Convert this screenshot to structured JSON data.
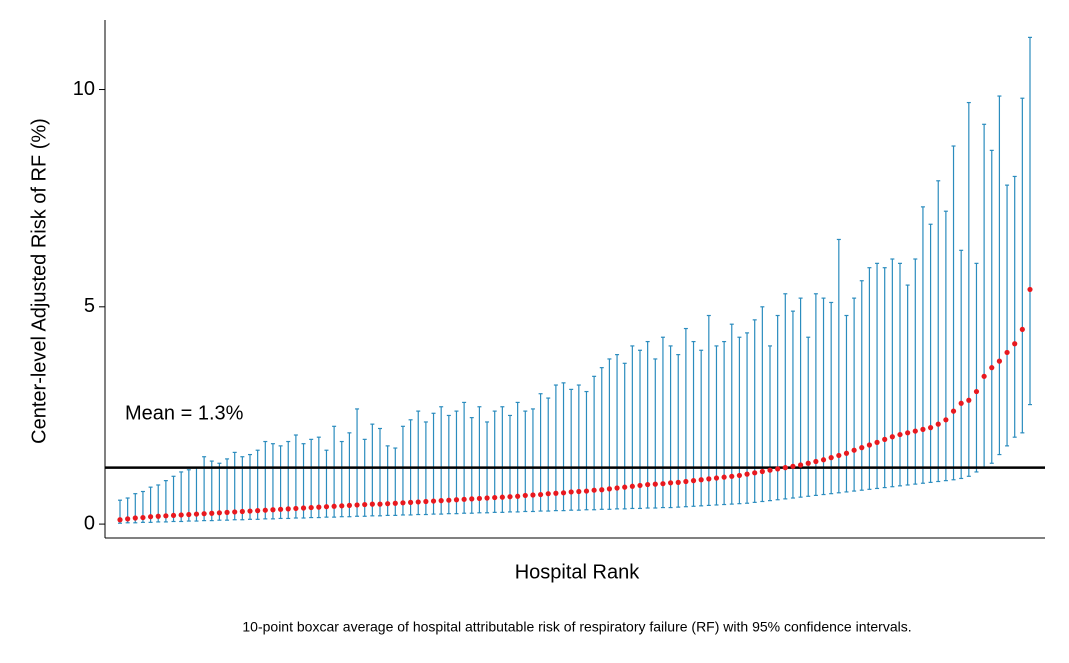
{
  "chart_data": {
    "type": "errorbar",
    "xlabel": "Hospital Rank",
    "ylabel": "Center-level Adjusted Risk of RF (%)",
    "caption": "10-point boxcar average of hospital attributable risk of respiratory failure (RF) with 95% confidence intervals.",
    "ylim": [
      -0.32,
      11.6
    ],
    "yticks": [
      0,
      5,
      10
    ],
    "mean": 1.3,
    "mean_label": "Mean = 1.3%",
    "point_color": "#e8191f",
    "bar_color": "#2b8cbe",
    "values": [
      0.1,
      0.12,
      0.14,
      0.15,
      0.17,
      0.18,
      0.19,
      0.2,
      0.21,
      0.22,
      0.23,
      0.24,
      0.25,
      0.26,
      0.27,
      0.28,
      0.29,
      0.3,
      0.31,
      0.32,
      0.33,
      0.34,
      0.35,
      0.36,
      0.37,
      0.38,
      0.39,
      0.4,
      0.41,
      0.42,
      0.43,
      0.44,
      0.45,
      0.46,
      0.46,
      0.47,
      0.48,
      0.49,
      0.5,
      0.51,
      0.52,
      0.53,
      0.54,
      0.55,
      0.56,
      0.57,
      0.58,
      0.59,
      0.6,
      0.61,
      0.62,
      0.63,
      0.64,
      0.66,
      0.67,
      0.68,
      0.7,
      0.71,
      0.72,
      0.74,
      0.75,
      0.76,
      0.78,
      0.79,
      0.81,
      0.83,
      0.85,
      0.87,
      0.89,
      0.91,
      0.92,
      0.93,
      0.95,
      0.96,
      0.98,
      1.0,
      1.02,
      1.04,
      1.06,
      1.08,
      1.1,
      1.12,
      1.15,
      1.18,
      1.21,
      1.24,
      1.27,
      1.3,
      1.33,
      1.36,
      1.4,
      1.44,
      1.48,
      1.53,
      1.58,
      1.63,
      1.7,
      1.76,
      1.82,
      1.88,
      1.95,
      2.01,
      2.06,
      2.1,
      2.14,
      2.18,
      2.22,
      2.3,
      2.4,
      2.6,
      2.78,
      2.85,
      3.05,
      3.4,
      3.6,
      3.75,
      3.95,
      4.15,
      4.48,
      5.4
    ],
    "lower": [
      0.02,
      0.03,
      0.03,
      0.04,
      0.04,
      0.05,
      0.05,
      0.06,
      0.06,
      0.07,
      0.07,
      0.08,
      0.08,
      0.09,
      0.09,
      0.1,
      0.1,
      0.11,
      0.11,
      0.12,
      0.12,
      0.13,
      0.13,
      0.14,
      0.14,
      0.15,
      0.15,
      0.16,
      0.16,
      0.17,
      0.17,
      0.18,
      0.18,
      0.19,
      0.19,
      0.2,
      0.2,
      0.21,
      0.21,
      0.22,
      0.22,
      0.23,
      0.23,
      0.24,
      0.24,
      0.25,
      0.25,
      0.26,
      0.26,
      0.27,
      0.27,
      0.28,
      0.28,
      0.29,
      0.29,
      0.3,
      0.3,
      0.31,
      0.31,
      0.32,
      0.32,
      0.33,
      0.33,
      0.34,
      0.34,
      0.35,
      0.35,
      0.36,
      0.36,
      0.37,
      0.37,
      0.38,
      0.38,
      0.39,
      0.4,
      0.41,
      0.42,
      0.43,
      0.44,
      0.45,
      0.46,
      0.47,
      0.48,
      0.5,
      0.52,
      0.54,
      0.56,
      0.58,
      0.6,
      0.62,
      0.64,
      0.66,
      0.68,
      0.7,
      0.72,
      0.74,
      0.76,
      0.78,
      0.8,
      0.82,
      0.84,
      0.86,
      0.88,
      0.9,
      0.92,
      0.94,
      0.96,
      0.98,
      1.0,
      1.02,
      1.05,
      1.1,
      1.2,
      1.3,
      1.4,
      1.6,
      1.8,
      2.0,
      2.1,
      2.75
    ],
    "upper": [
      0.55,
      0.6,
      0.7,
      0.75,
      0.85,
      0.9,
      1.0,
      1.1,
      1.2,
      1.25,
      1.3,
      1.55,
      1.45,
      1.4,
      1.5,
      1.65,
      1.55,
      1.6,
      1.7,
      1.9,
      1.85,
      1.8,
      1.9,
      2.05,
      1.85,
      1.95,
      2.0,
      1.7,
      2.25,
      1.9,
      2.1,
      2.65,
      1.95,
      2.3,
      2.2,
      1.8,
      1.75,
      2.25,
      2.4,
      2.6,
      2.35,
      2.55,
      2.7,
      2.5,
      2.6,
      2.8,
      2.45,
      2.7,
      2.35,
      2.6,
      2.7,
      2.5,
      2.8,
      2.6,
      2.65,
      3.0,
      2.9,
      3.2,
      3.25,
      3.1,
      3.2,
      3.05,
      3.4,
      3.6,
      3.8,
      3.9,
      3.7,
      4.1,
      4.0,
      4.2,
      3.8,
      4.3,
      4.1,
      3.9,
      4.5,
      4.2,
      4.0,
      4.8,
      4.1,
      4.2,
      4.6,
      4.3,
      4.4,
      4.7,
      5.0,
      4.1,
      4.8,
      5.3,
      4.9,
      5.2,
      4.3,
      5.3,
      5.2,
      5.1,
      6.55,
      4.8,
      5.2,
      5.6,
      5.9,
      6.0,
      5.9,
      6.1,
      6.0,
      5.5,
      6.1,
      7.3,
      6.9,
      7.9,
      7.2,
      8.7,
      6.3,
      9.7,
      6.0,
      9.2,
      8.6,
      9.85,
      7.8,
      8.0,
      9.8,
      11.2
    ]
  }
}
